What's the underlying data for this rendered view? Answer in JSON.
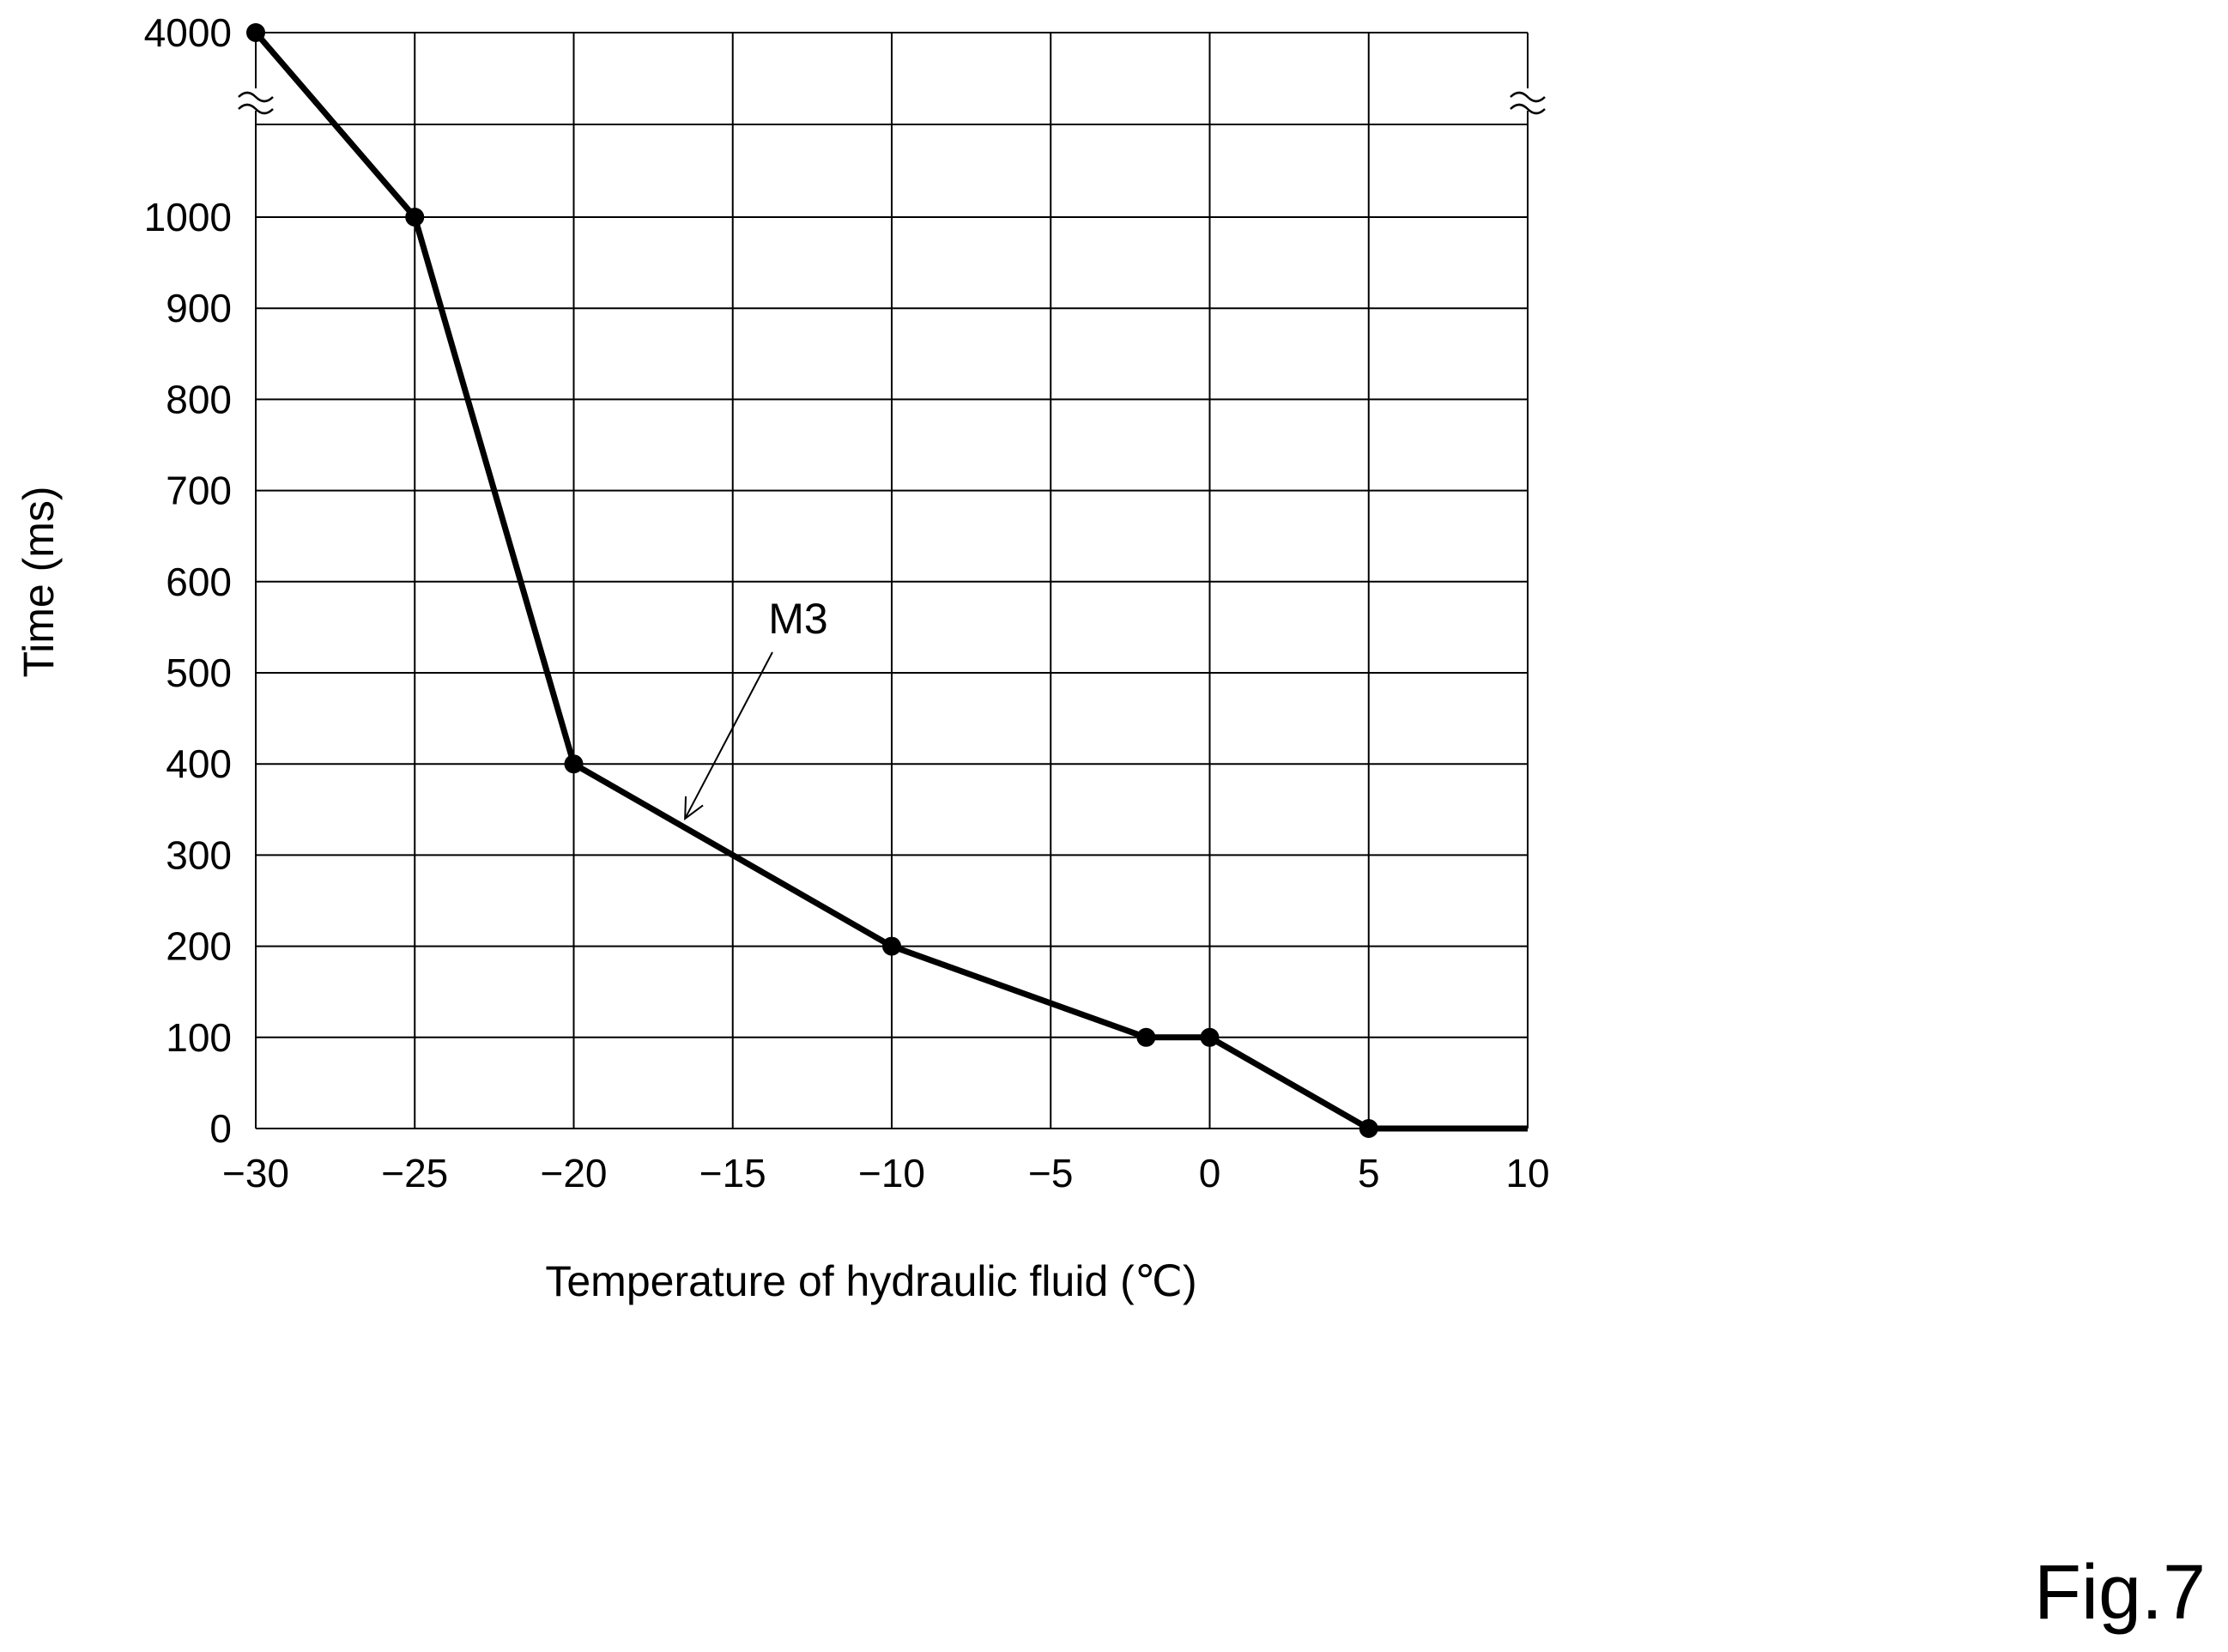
{
  "figure_label": "Fig.7",
  "chart_data": {
    "type": "line",
    "title": "",
    "xlabel": "Temperature of hydraulic fluid (℃)",
    "ylabel": "Time (ms)",
    "xlim": [
      -30,
      10
    ],
    "ylim": [
      0,
      1000
    ],
    "y_break": {
      "top_tick": 4000
    },
    "x_ticks": [
      -30,
      -25,
      -20,
      -15,
      -10,
      -5,
      0,
      5,
      10
    ],
    "x_tick_labels": [
      "−30",
      "−25",
      "−20",
      "−15",
      "−10",
      "−5",
      "0",
      "5",
      "10"
    ],
    "y_ticks": [
      0,
      100,
      200,
      300,
      400,
      500,
      600,
      700,
      800,
      900,
      1000,
      4000
    ],
    "y_tick_labels": [
      "0",
      "100",
      "200",
      "300",
      "400",
      "500",
      "600",
      "700",
      "800",
      "900",
      "1000",
      "4000"
    ],
    "grid": true,
    "series": [
      {
        "x": [
          -30,
          -25,
          -20,
          -10,
          -2,
          0,
          5,
          10
        ],
        "y": [
          4000,
          1000,
          400,
          200,
          100,
          100,
          0,
          0
        ],
        "markers": [
          true,
          true,
          true,
          true,
          true,
          true,
          true,
          false
        ]
      }
    ],
    "annotations": [
      {
        "text": "M3",
        "points_to": [
          -16.5,
          340
        ]
      }
    ]
  }
}
